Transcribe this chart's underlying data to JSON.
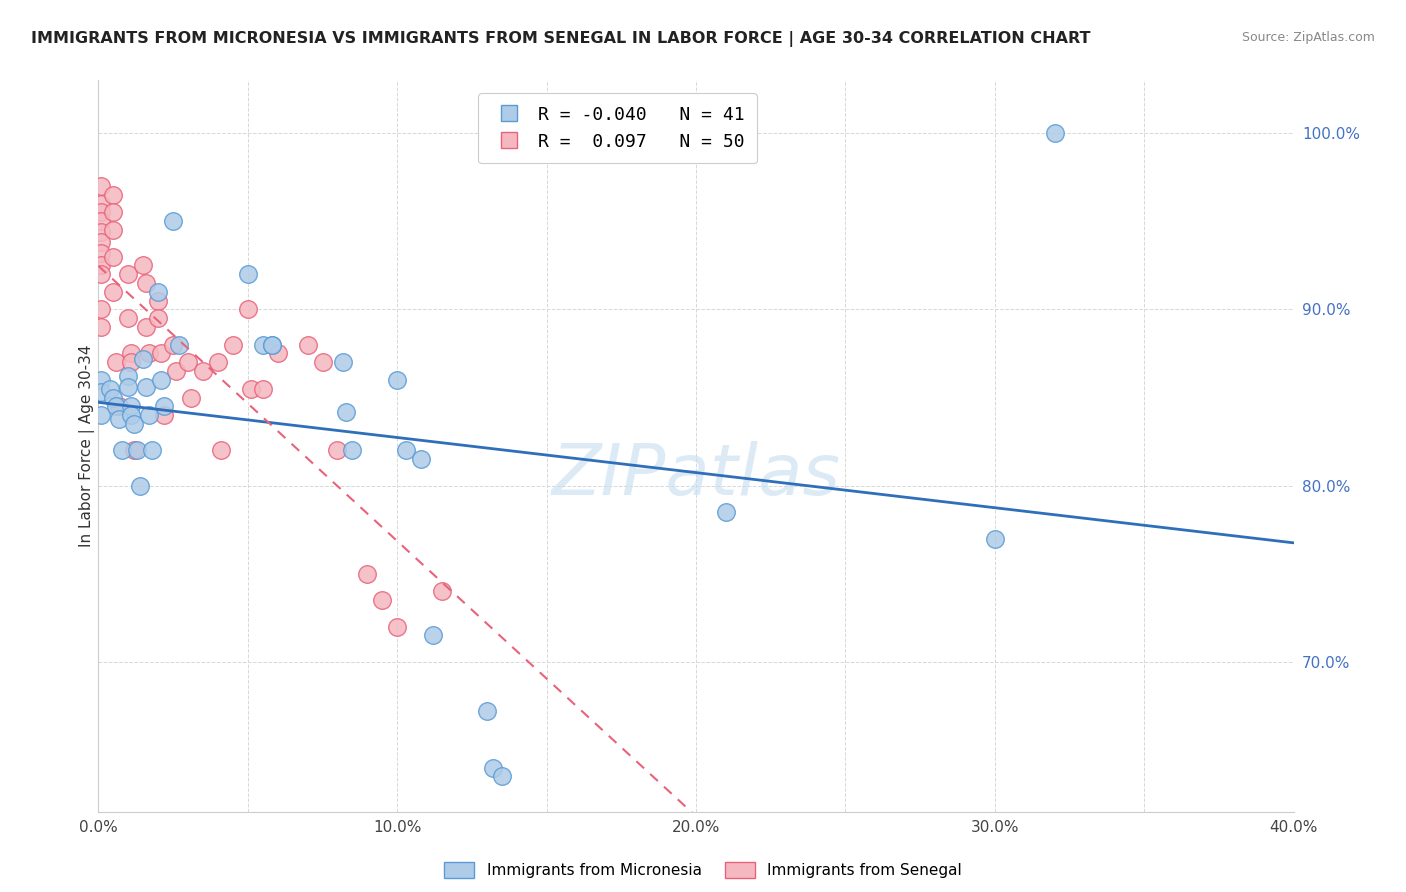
{
  "title": "IMMIGRANTS FROM MICRONESIA VS IMMIGRANTS FROM SENEGAL IN LABOR FORCE | AGE 30-34 CORRELATION CHART",
  "source": "Source: ZipAtlas.com",
  "ylabel": "In Labor Force | Age 30-34",
  "xlim": [
    0.0,
    0.4
  ],
  "ylim": [
    0.615,
    1.03
  ],
  "yticks": [
    0.7,
    0.8,
    0.9,
    1.0
  ],
  "xticks": [
    0.0,
    0.05,
    0.1,
    0.15,
    0.2,
    0.25,
    0.3,
    0.35,
    0.4
  ],
  "micronesia_color": "#aecce8",
  "senegal_color": "#f5b8c0",
  "micronesia_edge": "#5b9bd5",
  "senegal_edge": "#e8637a",
  "trend_micronesia_color": "#2f6fba",
  "trend_senegal_color": "#e8637a",
  "R_micronesia": -0.04,
  "N_micronesia": 41,
  "R_senegal": 0.097,
  "N_senegal": 50,
  "micronesia_x": [
    0.001,
    0.001,
    0.001,
    0.004,
    0.005,
    0.006,
    0.007,
    0.008,
    0.01,
    0.01,
    0.011,
    0.011,
    0.012,
    0.013,
    0.014,
    0.015,
    0.016,
    0.017,
    0.018,
    0.02,
    0.021,
    0.022,
    0.025,
    0.027,
    0.05,
    0.055,
    0.058,
    0.058,
    0.082,
    0.083,
    0.085,
    0.1,
    0.103,
    0.108,
    0.112,
    0.13,
    0.132,
    0.135,
    0.21,
    0.3,
    0.32
  ],
  "micronesia_y": [
    0.86,
    0.853,
    0.84,
    0.855,
    0.85,
    0.845,
    0.838,
    0.82,
    0.862,
    0.856,
    0.845,
    0.84,
    0.835,
    0.82,
    0.8,
    0.872,
    0.856,
    0.84,
    0.82,
    0.91,
    0.86,
    0.845,
    0.95,
    0.88,
    0.92,
    0.88,
    0.88,
    0.88,
    0.87,
    0.842,
    0.82,
    0.86,
    0.82,
    0.815,
    0.715,
    0.672,
    0.64,
    0.635,
    0.785,
    0.77,
    1.0
  ],
  "senegal_x": [
    0.001,
    0.001,
    0.001,
    0.001,
    0.001,
    0.001,
    0.001,
    0.001,
    0.001,
    0.001,
    0.001,
    0.005,
    0.005,
    0.005,
    0.005,
    0.005,
    0.006,
    0.007,
    0.01,
    0.01,
    0.011,
    0.011,
    0.012,
    0.015,
    0.016,
    0.016,
    0.017,
    0.02,
    0.02,
    0.021,
    0.022,
    0.025,
    0.026,
    0.03,
    0.031,
    0.035,
    0.04,
    0.041,
    0.045,
    0.05,
    0.051,
    0.055,
    0.06,
    0.07,
    0.075,
    0.08,
    0.09,
    0.095,
    0.1,
    0.115
  ],
  "senegal_y": [
    0.97,
    0.96,
    0.955,
    0.95,
    0.944,
    0.938,
    0.932,
    0.925,
    0.92,
    0.9,
    0.89,
    0.965,
    0.955,
    0.945,
    0.93,
    0.91,
    0.87,
    0.845,
    0.92,
    0.895,
    0.875,
    0.87,
    0.82,
    0.925,
    0.915,
    0.89,
    0.875,
    0.905,
    0.895,
    0.875,
    0.84,
    0.88,
    0.865,
    0.87,
    0.85,
    0.865,
    0.87,
    0.82,
    0.88,
    0.9,
    0.855,
    0.855,
    0.875,
    0.88,
    0.87,
    0.82,
    0.75,
    0.735,
    0.72,
    0.74
  ],
  "watermark": "ZIPatlas",
  "background_color": "#ffffff",
  "grid_color": "#d8d8d8"
}
